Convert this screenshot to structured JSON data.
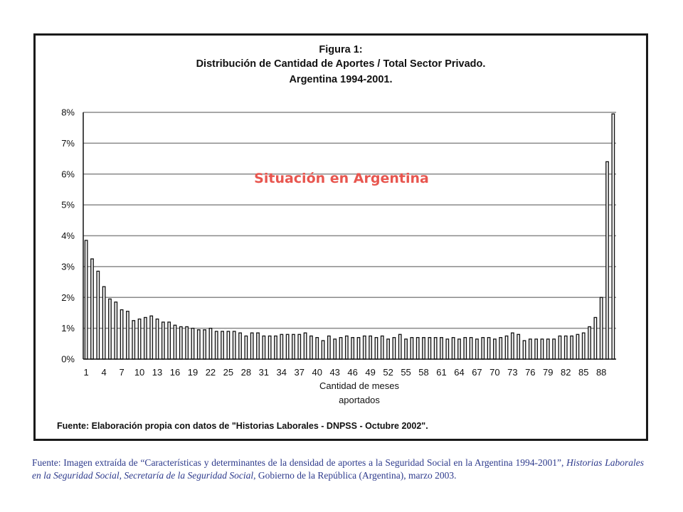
{
  "chart_data": {
    "type": "bar",
    "figure_label": "Figura 1:",
    "title": "Distribución de Cantidad de Aportes / Total Sector Privado.",
    "subtitle": "Argentina 1994-2001.",
    "overlay_title": "Situación en Argentina",
    "xlabel_line1": "Cantidad de meses",
    "xlabel_line2": "aportados",
    "ylabel": "",
    "ylim": [
      0,
      8
    ],
    "yticks": [
      "0%",
      "1%",
      "2%",
      "3%",
      "4%",
      "5%",
      "6%",
      "7%",
      "8%"
    ],
    "x_tick_labels": [
      "1",
      "4",
      "7",
      "10",
      "13",
      "16",
      "19",
      "22",
      "25",
      "28",
      "31",
      "34",
      "37",
      "40",
      "43",
      "46",
      "49",
      "52",
      "55",
      "58",
      "61",
      "64",
      "67",
      "70",
      "73",
      "76",
      "79",
      "82",
      "85",
      "88"
    ],
    "grid": true,
    "x": [
      1,
      2,
      3,
      4,
      5,
      6,
      7,
      8,
      9,
      10,
      11,
      12,
      13,
      14,
      15,
      16,
      17,
      18,
      19,
      20,
      21,
      22,
      23,
      24,
      25,
      26,
      27,
      28,
      29,
      30,
      31,
      32,
      33,
      34,
      35,
      36,
      37,
      38,
      39,
      40,
      41,
      42,
      43,
      44,
      45,
      46,
      47,
      48,
      49,
      50,
      51,
      52,
      53,
      54,
      55,
      56,
      57,
      58,
      59,
      60,
      61,
      62,
      63,
      64,
      65,
      66,
      67,
      68,
      69,
      70,
      71,
      72,
      73,
      74,
      75,
      76,
      77,
      78,
      79,
      80,
      81,
      82,
      83,
      84,
      85,
      86,
      87,
      88,
      89,
      90
    ],
    "values": [
      3.85,
      3.25,
      2.85,
      2.35,
      1.95,
      1.85,
      1.6,
      1.55,
      1.25,
      1.3,
      1.35,
      1.4,
      1.3,
      1.2,
      1.2,
      1.1,
      1.05,
      1.05,
      1.0,
      0.95,
      0.95,
      1.0,
      0.9,
      0.9,
      0.9,
      0.9,
      0.85,
      0.75,
      0.85,
      0.85,
      0.75,
      0.75,
      0.75,
      0.8,
      0.8,
      0.8,
      0.8,
      0.85,
      0.75,
      0.7,
      0.6,
      0.75,
      0.65,
      0.7,
      0.75,
      0.7,
      0.7,
      0.75,
      0.75,
      0.7,
      0.75,
      0.65,
      0.7,
      0.8,
      0.65,
      0.7,
      0.7,
      0.7,
      0.7,
      0.7,
      0.7,
      0.65,
      0.7,
      0.65,
      0.7,
      0.7,
      0.65,
      0.7,
      0.7,
      0.65,
      0.7,
      0.75,
      0.85,
      0.8,
      0.6,
      0.65,
      0.65,
      0.65,
      0.65,
      0.65,
      0.75,
      0.75,
      0.75,
      0.8,
      0.85,
      1.05,
      1.35,
      2.0,
      6.4,
      7.95
    ],
    "source": "Fuente: Elaboración propia con datos de \"Historias Laborales - DNPSS - Octubre 2002\"."
  },
  "note": {
    "part1": "Fuente: Imagen extraída de “Características y determinantes de la densidad de aportes a la Seguridad Social en la Argentina 1994-2001”, ",
    "italic": "Historias Laborales en la Seguridad Social, Secretaría de la Seguridad Social",
    "part2": ", Gobierno de la República (Argentina), marzo 2003."
  },
  "colors": {
    "bar_fill": "#f2f2f2",
    "bar_stroke": "#111111",
    "overlay": "#e8564f",
    "note_text": "#2d3a8c"
  }
}
